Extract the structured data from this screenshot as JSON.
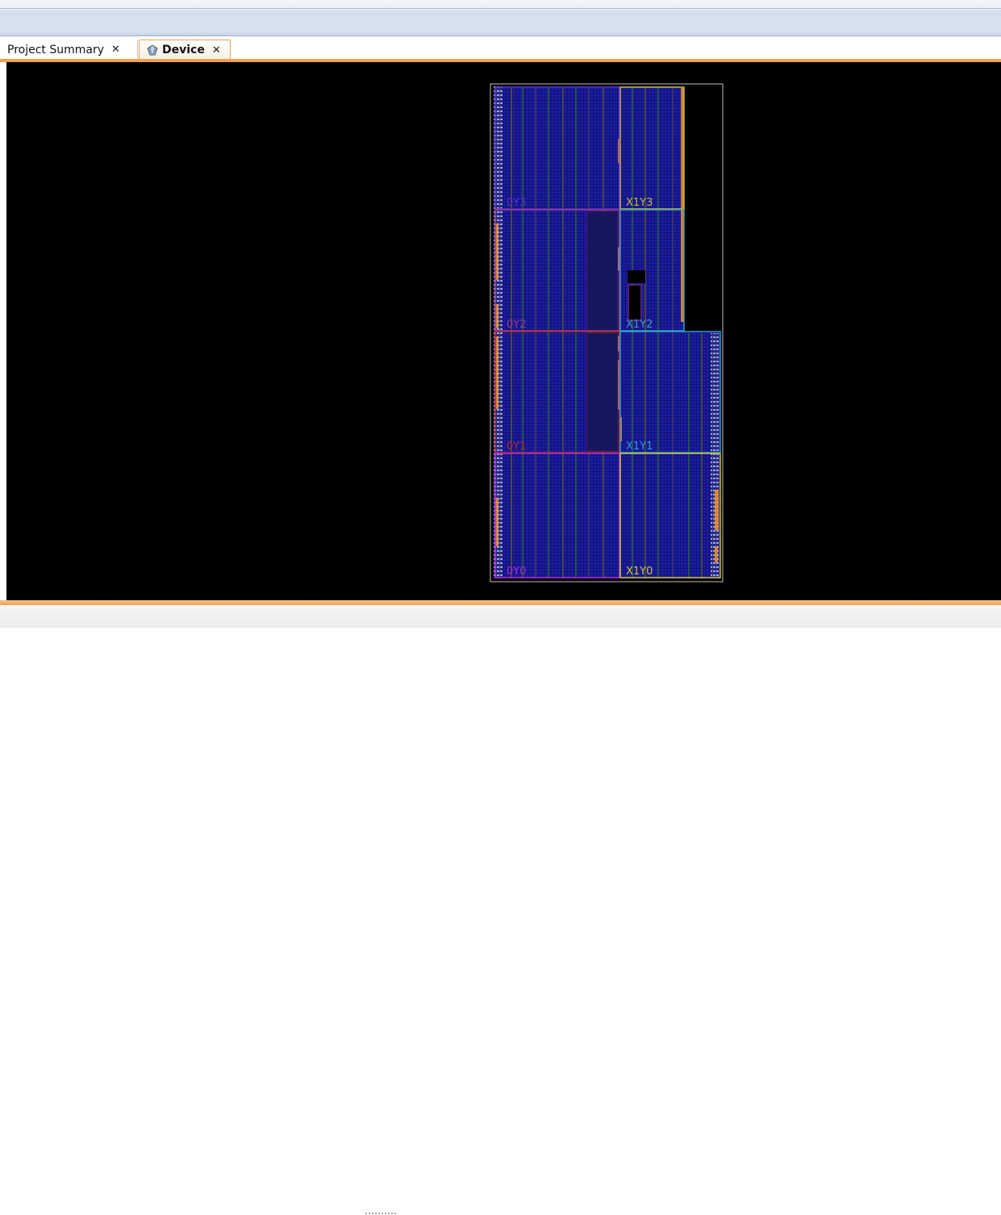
{
  "tabs": [
    {
      "label": "Project Summary",
      "close": "✕",
      "active": false
    },
    {
      "label": "Device",
      "close": "✕",
      "active": true
    }
  ],
  "device": {
    "background": "#000000",
    "fabric_color": "#1a1a8c",
    "clock_regions": [
      {
        "label": "X0Y3",
        "shown": "0Y3",
        "color": "#5a2fc8"
      },
      {
        "label": "X1Y3",
        "shown": "X1Y3",
        "color": "#c9b83a"
      },
      {
        "label": "X0Y2",
        "shown": "0Y2",
        "color": "#a03a8a"
      },
      {
        "label": "X1Y2",
        "shown": "X1Y2",
        "color": "#3aa0b8"
      },
      {
        "label": "X0Y1",
        "shown": "0Y1",
        "color": "#b02a2a"
      },
      {
        "label": "X1Y1",
        "shown": "X1Y1",
        "color": "#2a9ed6"
      },
      {
        "label": "X0Y0",
        "shown": "0Y0",
        "color": "#b02ad0"
      },
      {
        "label": "X1Y0",
        "shown": "X1Y0",
        "color": "#d4c43a"
      }
    ],
    "io_color": "#f0902a"
  },
  "accent_color": "#f0a14c"
}
